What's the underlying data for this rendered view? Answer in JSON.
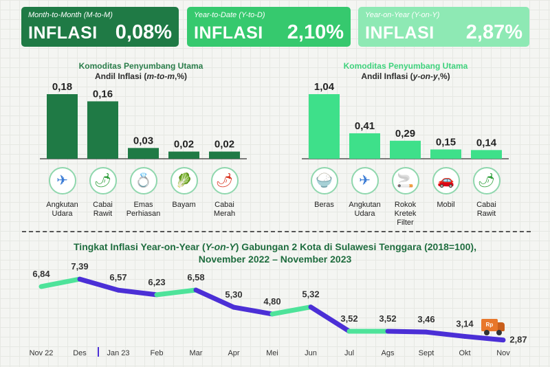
{
  "kpis": [
    {
      "caption": "Month-to-Month (M-to-M)",
      "word": "INFLASI",
      "value": "0,08%",
      "color": "#1f7a45"
    },
    {
      "caption": "Year-to-Date (Y-to-D)",
      "word": "INFLASI",
      "value": "2,10%",
      "color": "#36c96e"
    },
    {
      "caption": "Year-on-Year (Y-on-Y)",
      "word": "INFLASI",
      "value": "2,87%",
      "color": "#8ee9b4"
    }
  ],
  "mtm": {
    "line1": "Komoditas Penyumbang Utama",
    "line2_prefix": "Andil Inflasi (",
    "line2_italic": "m-to-m",
    "line2_suffix": ",%)"
  },
  "yoy": {
    "line1": "Komoditas Penyumbang Utama",
    "line2_prefix": "Andil Inflasi (",
    "line2_italic": "y-on-y",
    "line2_suffix": ",%)"
  },
  "line_title": {
    "line1_a": "Tingkat Inflasi Year-on-Year (",
    "line1_italic": "Y-on-Y",
    "line1_b": ") Gabungan 2 Kota di Sulawesi Tenggara (2018=100),",
    "line2": "November 2022 – November 2023"
  },
  "truck_label": "Rp",
  "chart_data": [
    {
      "type": "bar",
      "categories": [
        "Angkutan Udara",
        "Cabai Rawit",
        "Emas Perhiasan",
        "Bayam",
        "Cabai Merah"
      ],
      "values": [
        0.18,
        0.16,
        0.03,
        0.02,
        0.02
      ],
      "value_labels": [
        "0,18",
        "0,16",
        "0,03",
        "0,02",
        "0,02"
      ],
      "icons": [
        "airplane-icon",
        "chili-icon",
        "jewelry-icon",
        "spinach-icon",
        "red-chili-icon"
      ],
      "color": "#1f7a45",
      "ylim": [
        0,
        0.2
      ]
    },
    {
      "type": "bar",
      "categories": [
        "Beras",
        "Angkutan Udara",
        "Rokok Kretek Filter",
        "Mobil",
        "Cabai Rawit"
      ],
      "values": [
        1.04,
        0.41,
        0.29,
        0.15,
        0.14
      ],
      "value_labels": [
        "1,04",
        "0,41",
        "0,29",
        "0,15",
        "0,14"
      ],
      "icons": [
        "rice-bowl-icon",
        "airplane-icon",
        "cigarette-pack-icon",
        "car-icon",
        "chili-icon"
      ],
      "color": "#3ee08a",
      "ylim": [
        0,
        1.2
      ]
    },
    {
      "type": "line",
      "categories": [
        "Nov 22",
        "Des",
        "Jan 23",
        "Feb",
        "Mar",
        "Apr",
        "Mei",
        "Jun",
        "Jul",
        "Ags",
        "Sept",
        "Okt",
        "Nov"
      ],
      "values": [
        6.84,
        7.39,
        6.57,
        6.23,
        6.58,
        5.3,
        4.8,
        5.32,
        3.52,
        3.52,
        3.46,
        3.14,
        2.87
      ],
      "value_labels": [
        "6,84",
        "7,39",
        "6,57",
        "6,23",
        "6,58",
        "5,30",
        "4,80",
        "5,32",
        "3,52",
        "3,52",
        "3,46",
        "3,14",
        "2,87"
      ],
      "colors": {
        "up": "#4ee39a",
        "down": "#4b2fd6"
      },
      "ylim": [
        2.5,
        7.6
      ]
    }
  ]
}
